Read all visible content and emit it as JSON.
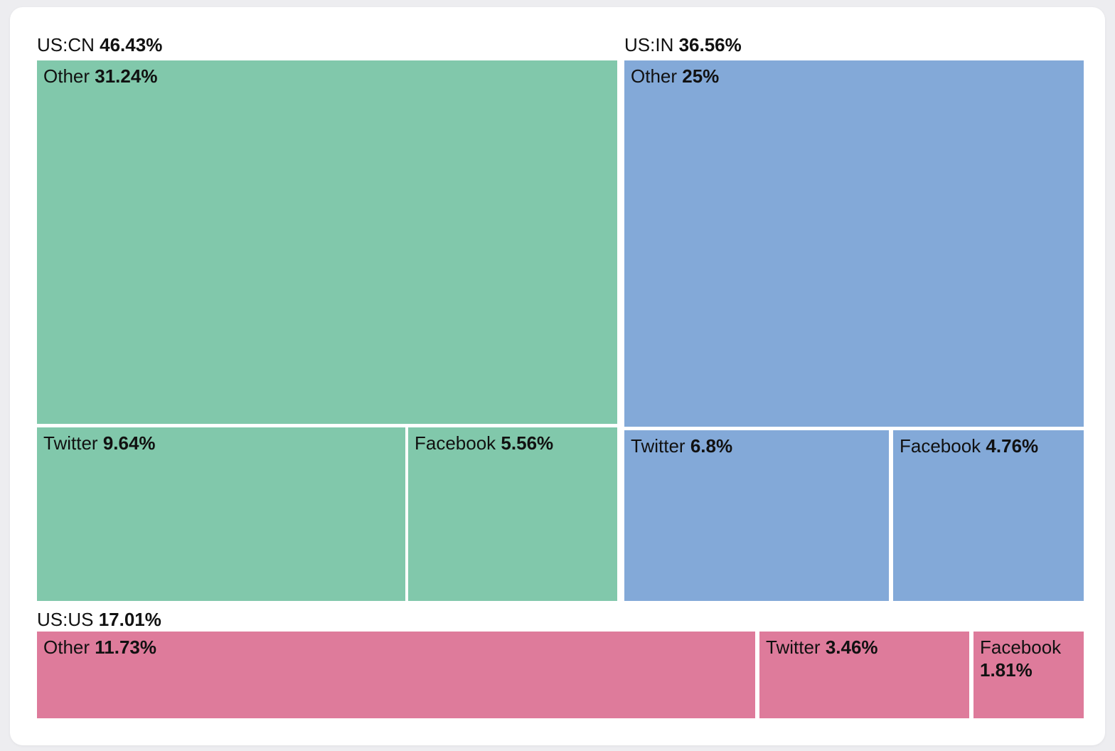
{
  "page": {
    "background_color": "#ededf0",
    "card_background_color": "#ffffff",
    "text_color": "#111111"
  },
  "chart_data": {
    "type": "treemap",
    "title": "",
    "unit": "percent",
    "legend_position": "none",
    "total": 100,
    "groups": [
      {
        "label": "US:CN",
        "percent_label": "46.43%",
        "value": 46.43,
        "color": "#81c8ab",
        "children": [
          {
            "name": "Other",
            "percent_label": "31.24%",
            "value": 31.24
          },
          {
            "name": "Twitter",
            "percent_label": "9.64%",
            "value": 9.64
          },
          {
            "name": "Facebook",
            "percent_label": "5.56%",
            "value": 5.56
          }
        ]
      },
      {
        "label": "US:IN",
        "percent_label": "36.56%",
        "value": 36.56,
        "color": "#83a9d8",
        "children": [
          {
            "name": "Other",
            "percent_label": "25%",
            "value": 25
          },
          {
            "name": "Twitter",
            "percent_label": "6.8%",
            "value": 6.8
          },
          {
            "name": "Facebook",
            "percent_label": "4.76%",
            "value": 4.76
          }
        ]
      },
      {
        "label": "US:US",
        "percent_label": "17.01%",
        "value": 17.01,
        "color": "#de7b9b",
        "children": [
          {
            "name": "Other",
            "percent_label": "11.73%",
            "value": 11.73
          },
          {
            "name": "Twitter",
            "percent_label": "3.46%",
            "value": 3.46
          },
          {
            "name": "Facebook",
            "percent_label": "1.81%",
            "value": 1.81
          }
        ]
      }
    ]
  }
}
